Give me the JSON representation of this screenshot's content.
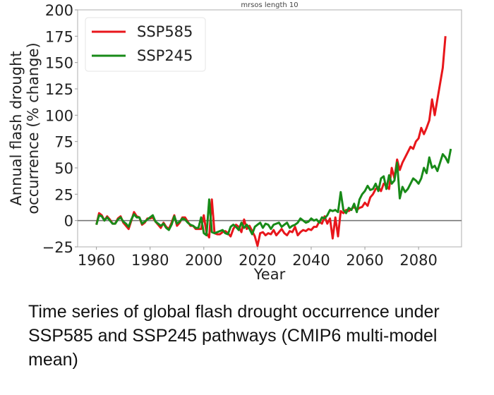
{
  "chart_data": {
    "type": "line",
    "title": "mrsos length 10",
    "xlabel": "Year",
    "ylabel": "Annual flash drought occurrence (% change)",
    "ylabel_lines": [
      "Annual flash drought",
      "occurrence (% change)"
    ],
    "xlim": [
      1953,
      2096
    ],
    "ylim": [
      -25,
      200
    ],
    "xticks": [
      1960,
      1980,
      2000,
      2020,
      2040,
      2060,
      2080
    ],
    "yticks": [
      -25,
      0,
      25,
      50,
      75,
      100,
      125,
      150,
      175,
      200
    ],
    "ytick_labels": [
      "−25",
      "0",
      "25",
      "50",
      "75",
      "100",
      "125",
      "150",
      "175",
      "200"
    ],
    "reference_line": 0,
    "grid": false,
    "legend_position": "top-left",
    "x_start": 1960,
    "series": [
      {
        "name": "SSP585",
        "color": "#e8161b",
        "values": [
          -4,
          7,
          5,
          0,
          4,
          1,
          -3,
          -3,
          2,
          4,
          -2,
          -5,
          -8,
          0,
          8,
          4,
          3,
          -4,
          -2,
          2,
          2,
          3,
          -1,
          -4,
          -7,
          -2,
          -6,
          -8,
          -2,
          5,
          -5,
          -2,
          3,
          3,
          -1,
          -5,
          -5,
          -8,
          -8,
          -8,
          5,
          -12,
          -16,
          20,
          -12,
          -13,
          -13,
          -11,
          -10,
          -12,
          -15,
          -8,
          -4,
          -6,
          -11,
          1,
          -8,
          -5,
          -10,
          -15,
          -24,
          -12,
          -11,
          -14,
          -12,
          -13,
          -9,
          -14,
          -11,
          -8,
          -12,
          -14,
          -10,
          -11,
          -6,
          -14,
          -11,
          -9,
          -10,
          -8,
          -9,
          -6,
          -6,
          -1,
          -3,
          4,
          -3,
          2,
          -17,
          3,
          -15,
          9,
          7,
          10,
          9,
          11,
          13,
          10,
          12,
          13,
          17,
          14,
          22,
          25,
          30,
          32,
          28,
          35,
          33,
          30,
          50,
          40,
          58,
          48,
          55,
          60,
          65,
          70,
          68,
          75,
          78,
          88,
          82,
          88,
          95,
          115,
          100,
          115,
          130,
          145,
          175
        ]
      },
      {
        "name": "SSP245",
        "color": "#188a18",
        "values": [
          -4,
          5,
          4,
          0,
          3,
          0,
          -3,
          -3,
          1,
          3,
          -1,
          -3,
          -6,
          1,
          6,
          3,
          3,
          -3,
          -1,
          1,
          3,
          5,
          -1,
          -3,
          -5,
          -3,
          -7,
          -9,
          -4,
          4,
          -3,
          -1,
          2,
          1,
          -2,
          -4,
          -5,
          -7,
          -7,
          3,
          -12,
          -14,
          20,
          -11,
          -12,
          -11,
          -10,
          -9,
          -12,
          -13,
          -6,
          -4,
          -6,
          -9,
          -2,
          -7,
          -4,
          -8,
          -13,
          -6,
          -4,
          -2,
          -7,
          -3,
          -4,
          -8,
          -4,
          -3,
          -2,
          -6,
          -4,
          -2,
          -7,
          -5,
          -4,
          -2,
          2,
          0,
          -2,
          -1,
          2,
          0,
          1,
          -2,
          3,
          2,
          5,
          10,
          9,
          10,
          8,
          27,
          10,
          7,
          12,
          10,
          16,
          8,
          20,
          25,
          28,
          33,
          29,
          30,
          35,
          28,
          40,
          42,
          30,
          43,
          35,
          38,
          55,
          21,
          32,
          27,
          30,
          35,
          40,
          38,
          35,
          40,
          50,
          45,
          60,
          50,
          52,
          47,
          55,
          63,
          60,
          55,
          68
        ]
      }
    ]
  },
  "caption": "Time series of global flash drought occurrence under SSP585 and SSP245 pathways (CMIP6 multi-model mean)"
}
